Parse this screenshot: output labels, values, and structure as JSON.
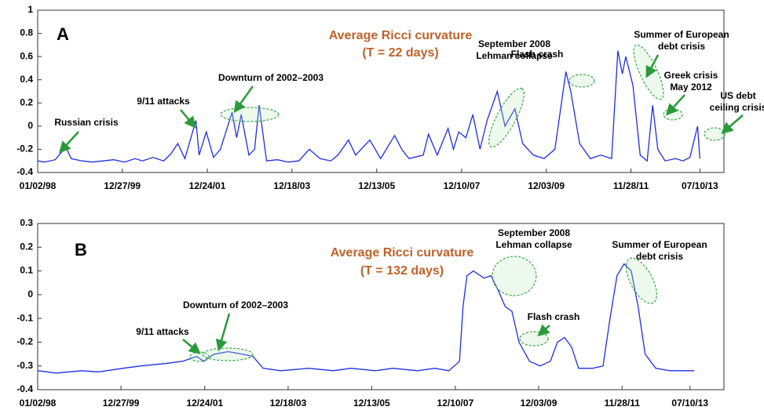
{
  "chart_data": [
    {
      "type": "line",
      "panel_label": "A",
      "title": "Average Ricci curvature",
      "subtitle": "(T = 22 days)",
      "xlim": [
        "1998-01-02",
        "2014-02-01"
      ],
      "xticks": [
        {
          "value": "1998-01-02",
          "label": "01/02/98"
        },
        {
          "value": "1999-12-27",
          "label": "12/27/99"
        },
        {
          "value": "2001-12-24",
          "label": "12/24/01"
        },
        {
          "value": "2003-12-18",
          "label": "12/18/03"
        },
        {
          "value": "2005-12-13",
          "label": "12/13/05"
        },
        {
          "value": "2007-12-10",
          "label": "12/10/07"
        },
        {
          "value": "2009-12-03",
          "label": "12/03/09"
        },
        {
          "value": "2011-11-28",
          "label": "11/28/11"
        },
        {
          "value": "2013-07-10",
          "label": "07/10/13"
        }
      ],
      "ylim": [
        -0.4,
        1
      ],
      "yticks": [
        1,
        0.8,
        0.6,
        0.4,
        0.2,
        0,
        -0.2,
        -0.4
      ],
      "x": [
        "1998-01-02",
        "1998-03-01",
        "1998-06-01",
        "1998-08-31",
        "1998-10-15",
        "1999-01-15",
        "1999-04-15",
        "1999-07-15",
        "1999-10-15",
        "2000-01-15",
        "2000-04-15",
        "2000-06-15",
        "2000-09-15",
        "2000-12-15",
        "2001-02-15",
        "2001-04-15",
        "2001-06-15",
        "2001-09-17",
        "2001-10-15",
        "2001-12-15",
        "2002-02-15",
        "2002-04-15",
        "2002-07-24",
        "2002-09-01",
        "2002-10-10",
        "2002-12-15",
        "2003-02-01",
        "2003-03-12",
        "2003-05-15",
        "2003-08-15",
        "2003-11-15",
        "2004-02-15",
        "2004-05-15",
        "2004-08-15",
        "2004-11-15",
        "2005-01-15",
        "2005-04-15",
        "2005-06-15",
        "2005-10-15",
        "2006-01-15",
        "2006-05-15",
        "2006-07-15",
        "2006-09-15",
        "2007-01-15",
        "2007-03-01",
        "2007-05-15",
        "2007-08-15",
        "2007-10-01",
        "2007-11-15",
        "2008-01-15",
        "2008-03-15",
        "2008-05-15",
        "2008-07-15",
        "2008-10-10",
        "2008-12-15",
        "2009-03-10",
        "2009-05-15",
        "2009-08-15",
        "2009-11-15",
        "2010-02-15",
        "2010-05-20",
        "2010-07-01",
        "2010-09-15",
        "2010-12-15",
        "2011-03-15",
        "2011-06-15",
        "2011-08-08",
        "2011-09-15",
        "2011-10-15",
        "2011-12-15",
        "2012-02-15",
        "2012-04-15",
        "2012-06-01",
        "2012-07-15",
        "2012-09-15",
        "2012-12-15",
        "2013-02-15",
        "2013-04-15",
        "2013-06-20",
        "2013-07-10"
      ],
      "series": [
        {
          "color": "#1f2ee6",
          "values": [
            -0.3,
            -0.31,
            -0.29,
            -0.18,
            -0.28,
            -0.3,
            -0.31,
            -0.3,
            -0.29,
            -0.31,
            -0.28,
            -0.3,
            -0.27,
            -0.3,
            -0.24,
            -0.15,
            -0.28,
            0.05,
            -0.25,
            -0.05,
            -0.27,
            -0.2,
            0.12,
            -0.1,
            0.1,
            -0.25,
            -0.2,
            0.18,
            -0.3,
            -0.29,
            -0.31,
            -0.3,
            -0.2,
            -0.28,
            -0.3,
            -0.25,
            -0.12,
            -0.25,
            -0.12,
            -0.28,
            -0.08,
            -0.2,
            -0.28,
            -0.25,
            -0.07,
            -0.25,
            -0.02,
            -0.2,
            -0.05,
            -0.1,
            0.1,
            -0.2,
            0.05,
            0.3,
            0.0,
            0.15,
            -0.15,
            -0.25,
            -0.28,
            -0.2,
            0.47,
            0.3,
            -0.15,
            -0.28,
            -0.25,
            -0.28,
            0.65,
            0.45,
            0.6,
            0.35,
            -0.25,
            -0.3,
            0.18,
            -0.2,
            -0.3,
            -0.28,
            -0.3,
            -0.27,
            0.0,
            -0.28
          ]
        }
      ],
      "annotations": [
        {
          "lines": [
            "Russian crisis"
          ]
        },
        {
          "lines": [
            "9/11 attacks"
          ]
        },
        {
          "lines": [
            "Downturn of 2002–2003"
          ]
        },
        {
          "lines": [
            "September 2008",
            "Lehman collapse"
          ]
        },
        {
          "lines": [
            "Flash crash"
          ]
        },
        {
          "lines": [
            "Summer of European",
            "debt crisis"
          ]
        },
        {
          "lines": [
            "Greek crisis",
            "May 2012"
          ]
        },
        {
          "lines": [
            "US debt",
            "ceiling crisis"
          ]
        }
      ]
    },
    {
      "type": "line",
      "panel_label": "B",
      "title": "Average Ricci curvature",
      "subtitle": "(T = 132 days)",
      "xlim": [
        "1998-01-02",
        "2014-05-01"
      ],
      "xticks": [
        {
          "value": "1998-01-02",
          "label": "01/02/98"
        },
        {
          "value": "1999-12-27",
          "label": "12/27/99"
        },
        {
          "value": "2001-12-24",
          "label": "12/24/01"
        },
        {
          "value": "2003-12-18",
          "label": "12/18/03"
        },
        {
          "value": "2005-12-13",
          "label": "12/13/05"
        },
        {
          "value": "2007-12-10",
          "label": "12/10/07"
        },
        {
          "value": "2009-12-03",
          "label": "12/03/09"
        },
        {
          "value": "2011-11-28",
          "label": "11/28/11"
        },
        {
          "value": "2013-07-10",
          "label": "07/10/13"
        }
      ],
      "ylim": [
        -0.4,
        0.3
      ],
      "yticks": [
        0.3,
        0.2,
        0.1,
        0,
        -0.1,
        -0.2,
        -0.3,
        -0.4
      ],
      "x": [
        "1998-01-02",
        "1998-06-15",
        "1999-01-15",
        "1999-06-15",
        "2000-01-15",
        "2000-06-15",
        "2001-01-15",
        "2001-06-15",
        "2001-10-15",
        "2001-12-15",
        "2002-03-15",
        "2002-07-15",
        "2002-11-15",
        "2003-02-15",
        "2003-05-15",
        "2003-10-15",
        "2004-06-15",
        "2005-01-15",
        "2005-06-15",
        "2006-01-15",
        "2006-06-15",
        "2007-01-15",
        "2007-06-15",
        "2007-10-15",
        "2008-01-15",
        "2008-02-15",
        "2008-03-20",
        "2008-05-15",
        "2008-08-15",
        "2008-10-15",
        "2008-12-15",
        "2009-02-15",
        "2009-04-15",
        "2009-06-15",
        "2009-09-15",
        "2009-12-15",
        "2010-03-15",
        "2010-05-15",
        "2010-07-15",
        "2010-09-15",
        "2010-11-15",
        "2011-03-15",
        "2011-06-15",
        "2011-08-15",
        "2011-10-15",
        "2011-12-15",
        "2012-02-15",
        "2012-04-15",
        "2012-06-15",
        "2012-09-15",
        "2013-01-15",
        "2013-06-15",
        "2013-08-15"
      ],
      "series": [
        {
          "color": "#1f2ee6",
          "values": [
            -0.32,
            -0.33,
            -0.32,
            -0.325,
            -0.31,
            -0.3,
            -0.29,
            -0.28,
            -0.26,
            -0.28,
            -0.25,
            -0.24,
            -0.25,
            -0.26,
            -0.31,
            -0.32,
            -0.31,
            -0.32,
            -0.31,
            -0.32,
            -0.31,
            -0.32,
            -0.31,
            -0.32,
            -0.28,
            -0.05,
            0.08,
            0.1,
            0.07,
            0.08,
            0.02,
            -0.05,
            -0.07,
            -0.2,
            -0.28,
            -0.3,
            -0.28,
            -0.2,
            -0.18,
            -0.22,
            -0.31,
            -0.31,
            -0.3,
            -0.1,
            0.08,
            0.13,
            0.1,
            -0.05,
            -0.25,
            -0.31,
            -0.32,
            -0.32,
            -0.32
          ]
        }
      ],
      "annotations": [
        {
          "lines": [
            "9/11 attacks"
          ]
        },
        {
          "lines": [
            "Downturn of 2002–2003"
          ]
        },
        {
          "lines": [
            "September 2008",
            "Lehman collapse"
          ]
        },
        {
          "lines": [
            "Flash crash"
          ]
        },
        {
          "lines": [
            "Summer of European",
            "debt crisis"
          ]
        }
      ]
    }
  ]
}
